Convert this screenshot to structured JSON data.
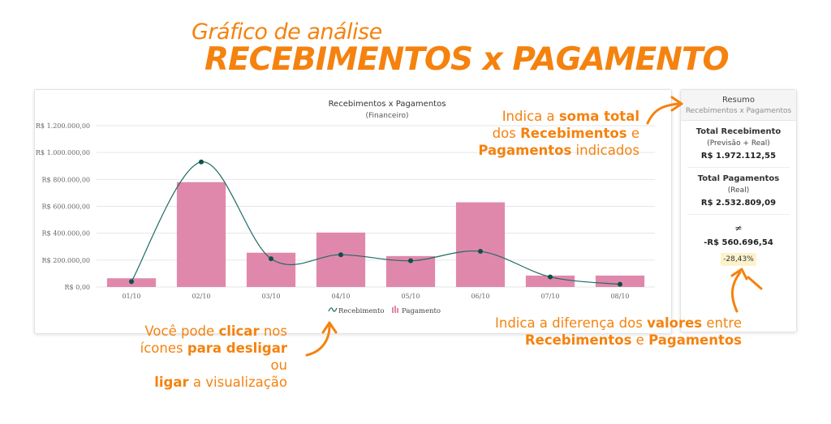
{
  "heading": {
    "subtitle": "Gráfico de análise",
    "title": "RECEBIMENTOS x PAGAMENTO"
  },
  "chart_data": {
    "type": "bar",
    "title": "Recebimentos x Pagamentos",
    "subtitle": "(Financeiro)",
    "categories": [
      "01/10",
      "02/10",
      "03/10",
      "04/10",
      "05/10",
      "06/10",
      "07/10",
      "08/10"
    ],
    "series": [
      {
        "name": "Recebimento",
        "type": "line",
        "color": "#1f6a66",
        "values": [
          40000,
          930000,
          210000,
          240000,
          195000,
          265000,
          75000,
          20000
        ]
      },
      {
        "name": "Pagamento",
        "type": "bar",
        "color": "#e088ab",
        "values": [
          65000,
          780000,
          255000,
          405000,
          230000,
          630000,
          85000,
          85000
        ]
      }
    ],
    "ylim": [
      0,
      1200000
    ],
    "yticks": [
      "R$ 0,00",
      "R$ 200.000,00",
      "R$ 400.000,00",
      "R$ 600.000,00",
      "R$ 800.000,00",
      "R$ 1.000.000,00",
      "R$ 1.200.000,00"
    ],
    "ytick_values": [
      0,
      200000,
      400000,
      600000,
      800000,
      1000000,
      1200000
    ],
    "legend_position": "bottom",
    "grid": true
  },
  "summary": {
    "title": "Resumo",
    "subtitle": "Recebimentos x Pagamentos",
    "receb_label": "Total Recebimento",
    "receb_note": "(Previsão + Real)",
    "receb_value": "R$ 1.972.112,55",
    "pag_label": "Total Pagamentos",
    "pag_note": "(Real)",
    "pag_value": "R$ 2.532.809,09",
    "neq_symbol": "≠",
    "diff_value": "-R$ 560.696,54",
    "diff_pct": "-28,43%"
  },
  "notes": {
    "total_pre": "Indica a ",
    "total_b1": "soma total",
    "total_mid1": "dos ",
    "total_b2": "Recebimentos",
    "total_mid2": " e",
    "total_b3": "Pagamentos",
    "total_post": " indicados",
    "click_pre": "Você pode ",
    "click_b1": "clicar",
    "click_mid1": " nos",
    "click_mid2": "ícones ",
    "click_b2": "para desligar",
    "click_mid3": " ou",
    "click_b3": "ligar",
    "click_post": " a visualização",
    "diff_pre": "Indica a diferença dos ",
    "diff_b1": "valores",
    "diff_mid": " entre",
    "diff_b2": "Recebimentos",
    "diff_mid2": " e ",
    "diff_b3": "Pagamentos"
  },
  "colors": {
    "accent": "#f5820f",
    "bar": "#e088ab",
    "line": "#1f6a66"
  }
}
